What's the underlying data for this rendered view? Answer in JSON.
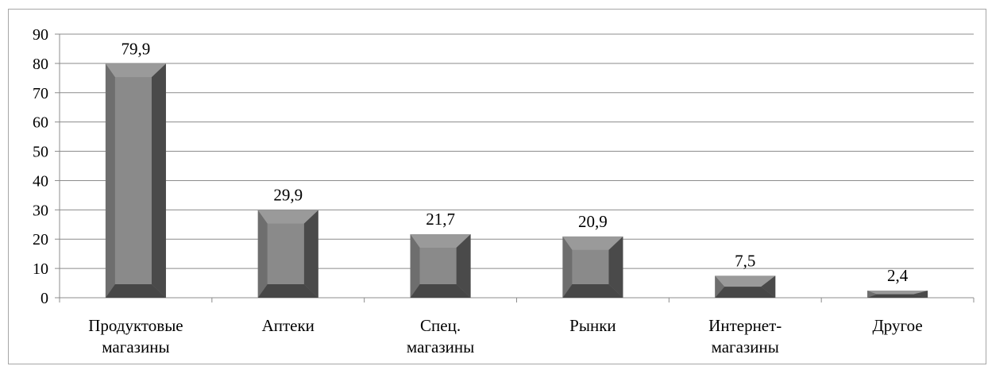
{
  "chart_data": {
    "type": "bar",
    "categories": [
      [
        "Продуктовые",
        "магазины"
      ],
      [
        "Аптеки"
      ],
      [
        "Спец.",
        "магазины"
      ],
      [
        "Рынки"
      ],
      [
        "Интернет-",
        "магазины"
      ],
      [
        "Другое"
      ]
    ],
    "values": [
      79.9,
      29.9,
      21.7,
      20.9,
      7.5,
      2.4
    ],
    "value_labels": [
      "79,9",
      "29,9",
      "21,7",
      "20,9",
      "7,5",
      "2,4"
    ],
    "yticks": [
      0,
      10,
      20,
      30,
      40,
      50,
      60,
      70,
      80,
      90
    ],
    "ylim": [
      0,
      90
    ],
    "grid": true,
    "legend": "none",
    "colors": {
      "bar_face": "#8a8a8a",
      "bar_inner": "#7a7a7a",
      "bar_left": "#6e6e6e",
      "bar_right": "#4a4a4a",
      "bar_bottom": "#474747",
      "bar_top": "#9a9a9a",
      "grid": "#8c8c8c",
      "axis": "#8c8c8c"
    }
  }
}
